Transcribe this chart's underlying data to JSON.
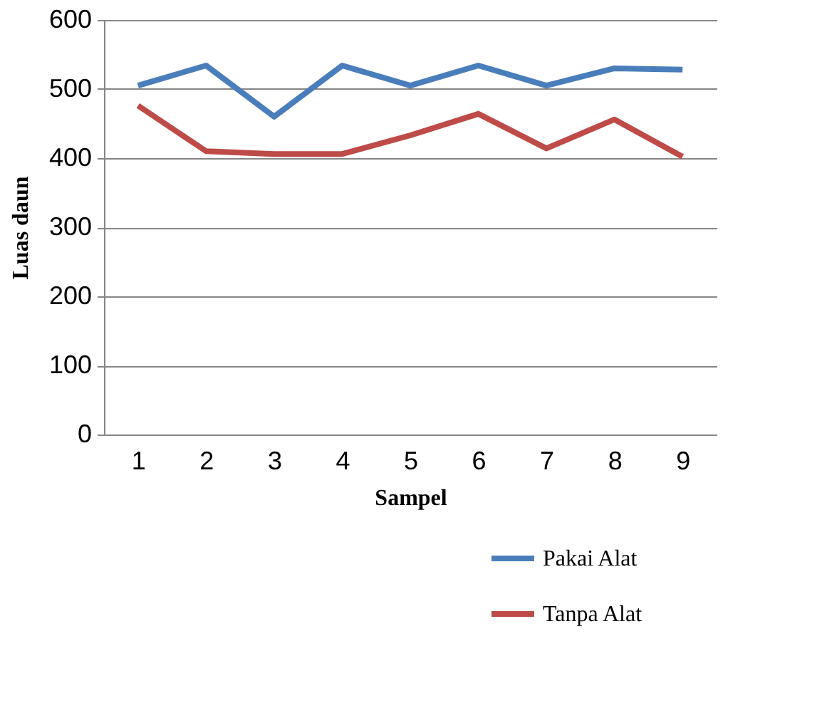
{
  "chart_data": {
    "type": "line",
    "xlabel": "Sampel",
    "ylabel": "Luas daun",
    "categories": [
      "1",
      "2",
      "3",
      "4",
      "5",
      "6",
      "7",
      "8",
      "9"
    ],
    "series": [
      {
        "name": "Pakai Alat",
        "color": "#4a7ebb",
        "values": [
          505,
          534,
          460,
          534,
          505,
          534,
          505,
          530,
          528
        ]
      },
      {
        "name": "Tanpa Alat",
        "color": "#be4b48",
        "values": [
          476,
          410,
          406,
          406,
          433,
          464,
          414,
          456,
          402
        ]
      }
    ],
    "ylim": [
      0,
      600
    ],
    "yticks": [
      0,
      100,
      200,
      300,
      400,
      500,
      600
    ],
    "grid": "y",
    "legend": "bottom right",
    "marker": "none",
    "line_style": "solid"
  }
}
